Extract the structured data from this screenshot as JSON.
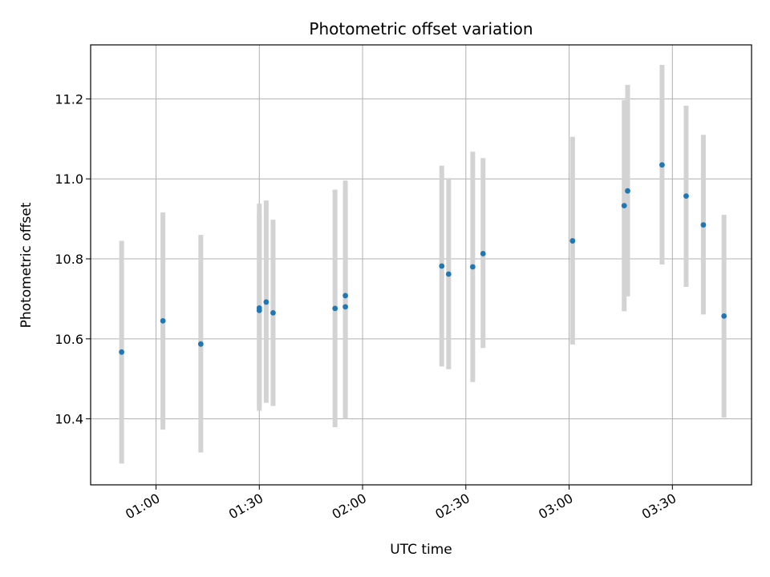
{
  "chart_data": {
    "type": "scatter",
    "title": "Photometric offset variation",
    "xlabel": "UTC time",
    "ylabel": "Photometric offset",
    "xlim": [
      "00:41",
      "03:53"
    ],
    "ylim": [
      10.235,
      11.335
    ],
    "x_ticks": [
      "01:00",
      "01:30",
      "02:00",
      "02:30",
      "03:00",
      "03:30"
    ],
    "y_ticks": [
      10.4,
      10.6,
      10.8,
      11.0,
      11.2
    ],
    "grid": true,
    "marker_color": "#1f77b4",
    "errorbar_color": "#d3d3d3",
    "points": [
      {
        "time": "00:50",
        "y": 10.567,
        "low": 10.288,
        "high": 10.845
      },
      {
        "time": "01:02",
        "y": 10.645,
        "low": 10.373,
        "high": 10.916
      },
      {
        "time": "01:13",
        "y": 10.587,
        "low": 10.316,
        "high": 10.86
      },
      {
        "time": "01:30",
        "y": 10.671,
        "low": 10.43,
        "high": 10.912
      },
      {
        "time": "01:30",
        "y": 10.677,
        "low": 10.42,
        "high": 10.938
      },
      {
        "time": "01:32",
        "y": 10.692,
        "low": 10.44,
        "high": 10.946
      },
      {
        "time": "01:34",
        "y": 10.665,
        "low": 10.432,
        "high": 10.898
      },
      {
        "time": "01:52",
        "y": 10.676,
        "low": 10.379,
        "high": 10.973
      },
      {
        "time": "01:55",
        "y": 10.68,
        "low": 10.4,
        "high": 10.962
      },
      {
        "time": "01:55",
        "y": 10.708,
        "low": 10.42,
        "high": 10.996
      },
      {
        "time": "02:23",
        "y": 10.782,
        "low": 10.531,
        "high": 11.033
      },
      {
        "time": "02:25",
        "y": 10.762,
        "low": 10.524,
        "high": 11.002
      },
      {
        "time": "02:32",
        "y": 10.78,
        "low": 10.492,
        "high": 11.068
      },
      {
        "time": "02:35",
        "y": 10.813,
        "low": 10.577,
        "high": 11.052
      },
      {
        "time": "03:01",
        "y": 10.845,
        "low": 10.586,
        "high": 11.105
      },
      {
        "time": "03:16",
        "y": 10.933,
        "low": 10.669,
        "high": 11.197
      },
      {
        "time": "03:17",
        "y": 10.97,
        "low": 10.706,
        "high": 11.235
      },
      {
        "time": "03:27",
        "y": 11.035,
        "low": 10.786,
        "high": 11.285
      },
      {
        "time": "03:34",
        "y": 10.957,
        "low": 10.73,
        "high": 11.183
      },
      {
        "time": "03:39",
        "y": 10.885,
        "low": 10.661,
        "high": 11.11
      },
      {
        "time": "03:45",
        "y": 10.657,
        "low": 10.403,
        "high": 10.91
      }
    ]
  }
}
